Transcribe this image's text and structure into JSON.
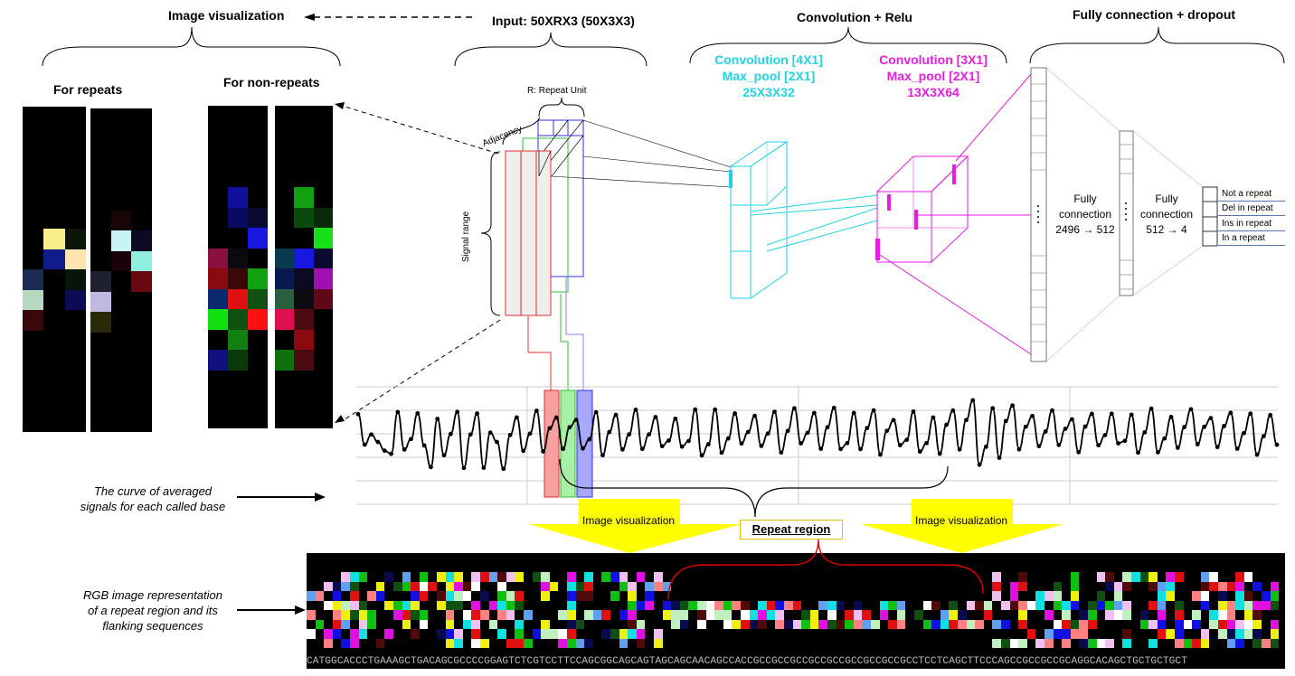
{
  "titles": {
    "image_visualization": "Image visualization",
    "input": "Input: 50XRX3 (50X3X3)",
    "conv_relu": "Convolution + Relu",
    "fully_connection": "Fully connection + dropout"
  },
  "left_panel": {
    "for_repeats": "For repeats",
    "for_non_repeats": "For non-repeats"
  },
  "input_panel": {
    "repeat_unit": "R: Repeat Unit",
    "adjacency": "Adjacency",
    "signal_range": "Signal range"
  },
  "conv1": {
    "lines": [
      "Convolution [4X1]",
      "Max_pool [2X1]",
      "25X3X32"
    ]
  },
  "conv2": {
    "lines": [
      "Convolution [3X1]",
      "Max_pool [2X1]",
      "13X3X64"
    ]
  },
  "fc1": {
    "line1": "Fully",
    "line2": "connection",
    "line3": "2496 → 512"
  },
  "fc2": {
    "line1": "Fully",
    "line2": "connection",
    "line3": "512 → 4"
  },
  "outputs": [
    "Not a repeat",
    "Del in repeat",
    "Ins in repeat",
    "In a repeat"
  ],
  "captions": {
    "curve_line1": "The curve of averaged",
    "curve_line2": "signals for each called base",
    "rgb_line1": "RGB image representation",
    "rgb_line2": "of a repeat region and its",
    "rgb_line3": "flanking sequences"
  },
  "yellow_left": "Image visualization",
  "yellow_right": "Image visualization",
  "repeat_region": "Repeat region",
  "sequence": "CATGGCACCCTGAAAGCTGACAGCGCCCCGGAGTCTCGTCCTTCCAGCGGCAGCAGTAGCAGCAACAGCCACCGCCGCCGCCGCCGCCGCCGCCGCCGCCTCCTCAGCTTCCCAGCCGCCGCCGCAGGCACAGCTGCTGCTGCT",
  "colors": {
    "cyan": "#22d3e6",
    "magenta": "#e61ee0",
    "yellow": "#ffff00",
    "red_bracket": "#e00000",
    "red_unit": "#e03030",
    "green_unit": "#30c030",
    "blue_unit": "#3030e0"
  }
}
